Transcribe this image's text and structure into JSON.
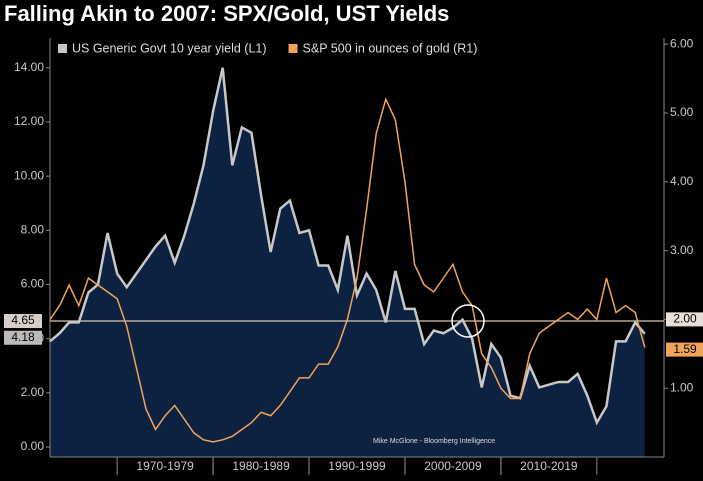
{
  "chart_data": {
    "type": "line",
    "title": "Falling Akin to 2007: SPX/Gold, UST Yields",
    "source": "Mike McGlone - Bloomberg Intelligence",
    "x": [
      1963,
      1964,
      1965,
      1966,
      1967,
      1968,
      1969,
      1970,
      1971,
      1972,
      1973,
      1974,
      1975,
      1976,
      1977,
      1978,
      1979,
      1980,
      1981,
      1982,
      1983,
      1984,
      1985,
      1986,
      1987,
      1988,
      1989,
      1990,
      1991,
      1992,
      1993,
      1994,
      1995,
      1996,
      1997,
      1998,
      1999,
      2000,
      2001,
      2002,
      2003,
      2004,
      2005,
      2006,
      2007,
      2008,
      2009,
      2010,
      2011,
      2012,
      2013,
      2014,
      2015,
      2016,
      2017,
      2018,
      2019,
      2020,
      2021,
      2022,
      2023,
      2024,
      2025
    ],
    "series": [
      {
        "name": "US Generic Govt 10 year yield (L1)",
        "color": "#c8c8c8",
        "fill": "#0d2240",
        "axis": "y",
        "values": [
          3.9,
          4.2,
          4.6,
          4.6,
          5.7,
          6.0,
          7.9,
          6.4,
          5.9,
          6.4,
          6.9,
          7.4,
          7.8,
          6.8,
          7.8,
          9.0,
          10.4,
          12.4,
          14.0,
          10.4,
          11.8,
          11.6,
          9.3,
          7.2,
          8.8,
          9.1,
          7.9,
          8.0,
          6.7,
          6.7,
          5.8,
          7.8,
          5.6,
          6.4,
          5.8,
          4.6,
          6.5,
          5.1,
          5.1,
          3.8,
          4.3,
          4.2,
          4.4,
          4.7,
          4.0,
          2.2,
          3.8,
          3.3,
          1.9,
          1.8,
          3.0,
          2.2,
          2.3,
          2.4,
          2.4,
          2.7,
          1.9,
          0.9,
          1.5,
          3.9,
          3.9,
          4.6,
          4.18
        ]
      },
      {
        "name": "S&P 500 in ounces of gold (R1)",
        "color": "#f0a35a",
        "axis": "y2",
        "values": [
          2.0,
          2.2,
          2.5,
          2.2,
          2.6,
          2.5,
          2.4,
          2.3,
          1.9,
          1.3,
          0.7,
          0.4,
          0.6,
          0.75,
          0.55,
          0.35,
          0.25,
          0.22,
          0.25,
          0.3,
          0.4,
          0.5,
          0.65,
          0.6,
          0.75,
          0.95,
          1.15,
          1.15,
          1.35,
          1.35,
          1.6,
          2.0,
          2.6,
          3.6,
          4.7,
          5.2,
          4.9,
          4.0,
          2.8,
          2.5,
          2.4,
          2.6,
          2.8,
          2.4,
          2.2,
          1.5,
          1.3,
          1.0,
          0.85,
          0.85,
          1.5,
          1.8,
          1.9,
          2.0,
          2.1,
          2.0,
          2.15,
          2.0,
          2.6,
          2.1,
          2.2,
          2.1,
          1.59
        ]
      }
    ],
    "xlim": [
      1963,
      2027
    ],
    "xbands": [
      {
        "from": 1970,
        "to": 1980,
        "label": "1970-1979"
      },
      {
        "from": 1980,
        "to": 1990,
        "label": "1980-1989"
      },
      {
        "from": 1990,
        "to": 2000,
        "label": "1990-1999"
      },
      {
        "from": 2000,
        "to": 2010,
        "label": "2000-2009"
      },
      {
        "from": 2010,
        "to": 2020,
        "label": "2010-2019"
      }
    ],
    "ylim": [
      -0.37,
      15.1
    ],
    "yticks": [
      {
        "value": 0,
        "label": "0.00"
      },
      {
        "value": 2,
        "label": "2.00"
      },
      {
        "value": 4,
        "label": "4.00"
      },
      {
        "value": 6,
        "label": "6.00"
      },
      {
        "value": 8,
        "label": "8.00"
      },
      {
        "value": 10,
        "label": "10.00"
      },
      {
        "value": 12,
        "label": "12.00"
      },
      {
        "value": 14,
        "label": "14.00"
      }
    ],
    "y2lim": [
      0,
      6.09
    ],
    "y2ticks": [
      {
        "value": 1,
        "label": "1.00"
      },
      {
        "value": 2,
        "label": "2.00"
      },
      {
        "value": 3,
        "label": "3.00"
      },
      {
        "value": 4,
        "label": "4.00"
      },
      {
        "value": 5,
        "label": "5.00"
      },
      {
        "value": 6,
        "label": "6.00"
      }
    ],
    "reference_line": {
      "y": 4.65,
      "y2": {
        "value": 2,
        "label": "2.00"
      },
      "color": "#d8c8b0"
    }
  }
}
